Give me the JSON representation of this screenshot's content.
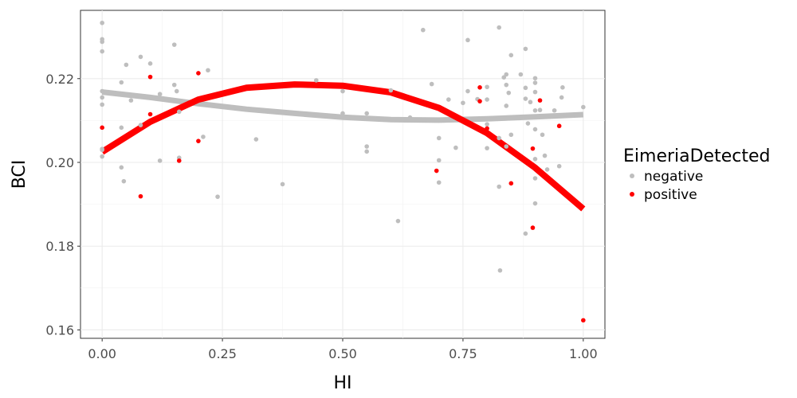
{
  "chart_data": {
    "type": "scatter",
    "xlabel": "HI",
    "ylabel": "BCI",
    "xlim": [
      -0.045,
      1.045
    ],
    "ylim": [
      0.158,
      0.2363
    ],
    "x_ticks": [
      0.0,
      0.25,
      0.5,
      0.75,
      1.0
    ],
    "x_tick_labels": [
      "0.00",
      "0.25",
      "0.50",
      "0.75",
      "1.00"
    ],
    "y_ticks": [
      0.16,
      0.18,
      0.2,
      0.22
    ],
    "y_tick_labels": [
      "0.16",
      "0.18",
      "0.20",
      "0.22"
    ],
    "grid": true,
    "legend": {
      "title": "EimeriaDetected",
      "placement": "right",
      "entries": [
        "negative",
        "positive"
      ]
    },
    "series": [
      {
        "name": "negative",
        "color": "#bebebe",
        "points": [
          [
            0.0,
            0.2333
          ],
          [
            0.0,
            0.2294
          ],
          [
            0.0,
            0.2288
          ],
          [
            0.0,
            0.2265
          ],
          [
            0.0,
            0.217
          ],
          [
            0.0,
            0.2155
          ],
          [
            0.0,
            0.2138
          ],
          [
            0.0,
            0.2032
          ],
          [
            0.0,
            0.2014
          ],
          [
            0.0,
            0.203
          ],
          [
            0.04,
            0.2191
          ],
          [
            0.04,
            0.2083
          ],
          [
            0.04,
            0.1988
          ],
          [
            0.045,
            0.1955
          ],
          [
            0.05,
            0.2233
          ],
          [
            0.06,
            0.2148
          ],
          [
            0.08,
            0.2252
          ],
          [
            0.08,
            0.2089
          ],
          [
            0.1,
            0.2236
          ],
          [
            0.12,
            0.2163
          ],
          [
            0.12,
            0.2004
          ],
          [
            0.15,
            0.2281
          ],
          [
            0.15,
            0.2185
          ],
          [
            0.155,
            0.217
          ],
          [
            0.16,
            0.2121
          ],
          [
            0.16,
            0.2011
          ],
          [
            0.22,
            0.222
          ],
          [
            0.21,
            0.2061
          ],
          [
            0.24,
            0.1918
          ],
          [
            0.32,
            0.2055
          ],
          [
            0.375,
            0.1948
          ],
          [
            0.445,
            0.2196
          ],
          [
            0.5,
            0.2117
          ],
          [
            0.5,
            0.217
          ],
          [
            0.55,
            0.2117
          ],
          [
            0.55,
            0.2038
          ],
          [
            0.55,
            0.2026
          ],
          [
            0.6,
            0.2172
          ],
          [
            0.615,
            0.186
          ],
          [
            0.64,
            0.2107
          ],
          [
            0.667,
            0.2316
          ],
          [
            0.685,
            0.2187
          ],
          [
            0.7,
            0.2058
          ],
          [
            0.7,
            0.2005
          ],
          [
            0.7,
            0.1952
          ],
          [
            0.72,
            0.215
          ],
          [
            0.735,
            0.2035
          ],
          [
            0.75,
            0.2142
          ],
          [
            0.76,
            0.2292
          ],
          [
            0.76,
            0.217
          ],
          [
            0.78,
            0.2151
          ],
          [
            0.8,
            0.218
          ],
          [
            0.8,
            0.215
          ],
          [
            0.8,
            0.2091
          ],
          [
            0.8,
            0.2034
          ],
          [
            0.825,
            0.2322
          ],
          [
            0.825,
            0.2058
          ],
          [
            0.825,
            0.1942
          ],
          [
            0.827,
            0.1742
          ],
          [
            0.835,
            0.2203
          ],
          [
            0.84,
            0.221
          ],
          [
            0.84,
            0.2185
          ],
          [
            0.84,
            0.2135
          ],
          [
            0.84,
            0.2038
          ],
          [
            0.85,
            0.2256
          ],
          [
            0.845,
            0.2166
          ],
          [
            0.85,
            0.2066
          ],
          [
            0.87,
            0.221
          ],
          [
            0.88,
            0.2271
          ],
          [
            0.88,
            0.2178
          ],
          [
            0.88,
            0.2152
          ],
          [
            0.885,
            0.2093
          ],
          [
            0.88,
            0.183
          ],
          [
            0.89,
            0.2144
          ],
          [
            0.9,
            0.2201
          ],
          [
            0.9,
            0.219
          ],
          [
            0.9,
            0.2168
          ],
          [
            0.9,
            0.2124
          ],
          [
            0.9,
            0.2079
          ],
          [
            0.9,
            0.2008
          ],
          [
            0.9,
            0.1962
          ],
          [
            0.9,
            0.1902
          ],
          [
            0.91,
            0.2125
          ],
          [
            0.915,
            0.2066
          ],
          [
            0.92,
            0.2016
          ],
          [
            0.925,
            0.1983
          ],
          [
            0.94,
            0.2124
          ],
          [
            0.95,
            0.1991
          ],
          [
            0.955,
            0.2155
          ],
          [
            0.957,
            0.2179
          ],
          [
            1.0,
            0.2132
          ]
        ]
      },
      {
        "name": "positive",
        "color": "#ff0000",
        "points": [
          [
            0.0,
            0.2083
          ],
          [
            0.08,
            0.1919
          ],
          [
            0.1,
            0.2204
          ],
          [
            0.1,
            0.2115
          ],
          [
            0.16,
            0.2004
          ],
          [
            0.2,
            0.2213
          ],
          [
            0.2,
            0.2051
          ],
          [
            0.695,
            0.198
          ],
          [
            0.785,
            0.2179
          ],
          [
            0.785,
            0.2146
          ],
          [
            0.8,
            0.2081
          ],
          [
            0.85,
            0.195
          ],
          [
            0.895,
            0.2033
          ],
          [
            0.895,
            0.1844
          ],
          [
            0.91,
            0.2148
          ],
          [
            0.95,
            0.2087
          ],
          [
            1.0,
            0.1623
          ]
        ]
      }
    ],
    "smooth_lines": [
      {
        "name": "negative",
        "color": "#bebebe",
        "x": [
          0.0,
          0.1,
          0.2,
          0.3,
          0.4,
          0.5,
          0.6,
          0.7,
          0.8,
          0.9,
          1.0
        ],
        "y": [
          0.2168,
          0.2155,
          0.214,
          0.2127,
          0.2117,
          0.2108,
          0.2102,
          0.2101,
          0.2104,
          0.2109,
          0.2114
        ]
      },
      {
        "name": "positive",
        "color": "#ff0000",
        "x": [
          0.0,
          0.1,
          0.2,
          0.3,
          0.4,
          0.5,
          0.6,
          0.7,
          0.8,
          0.9,
          1.0
        ],
        "y": [
          0.2025,
          0.2097,
          0.215,
          0.2178,
          0.2186,
          0.2183,
          0.2167,
          0.213,
          0.207,
          0.1987,
          0.1889
        ]
      }
    ]
  }
}
